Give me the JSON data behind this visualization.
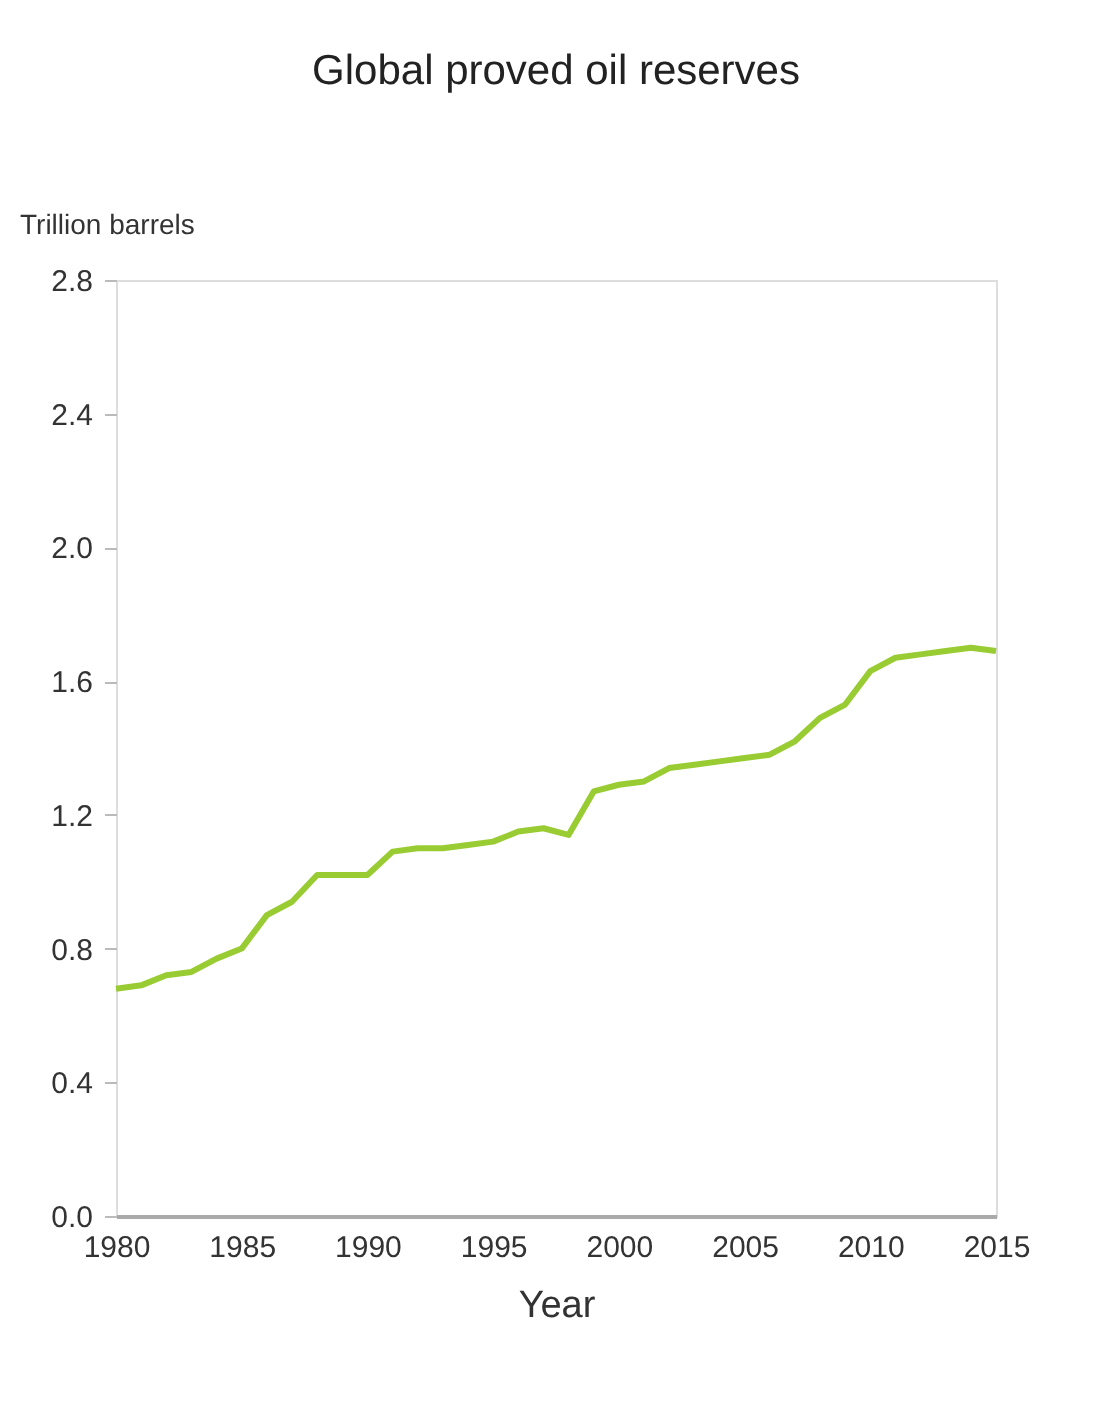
{
  "chart_data": {
    "type": "line",
    "title": "Global proved oil reserves",
    "ylabel": "Trillion barrels",
    "xlabel": "Year",
    "x": [
      1980,
      1981,
      1982,
      1983,
      1984,
      1985,
      1986,
      1987,
      1988,
      1989,
      1990,
      1991,
      1992,
      1993,
      1994,
      1995,
      1996,
      1997,
      1998,
      1999,
      2000,
      2001,
      2002,
      2003,
      2004,
      2005,
      2006,
      2007,
      2008,
      2009,
      2010,
      2011,
      2012,
      2013,
      2014,
      2015
    ],
    "series": [
      {
        "color": "#99cc33",
        "values": [
          0.68,
          0.69,
          0.72,
          0.73,
          0.77,
          0.8,
          0.9,
          0.94,
          1.02,
          1.02,
          1.02,
          1.09,
          1.1,
          1.1,
          1.11,
          1.12,
          1.15,
          1.16,
          1.14,
          1.27,
          1.29,
          1.3,
          1.34,
          1.35,
          1.36,
          1.37,
          1.38,
          1.42,
          1.49,
          1.53,
          1.63,
          1.67,
          1.68,
          1.69,
          1.7,
          1.69
        ]
      }
    ],
    "xlim": [
      1980,
      2015
    ],
    "xticks": [
      1980,
      1985,
      1990,
      1995,
      2000,
      2005,
      2010,
      2015
    ],
    "ylim": [
      0,
      2.8
    ],
    "yticks": [
      {
        "value": 0,
        "label": "0.0"
      },
      0.4,
      0.8,
      1.2,
      1.6,
      {
        "value": 2,
        "label": "2.0"
      },
      2.4,
      2.8
    ],
    "grid": false,
    "marker": "none",
    "line_style": "solid"
  }
}
